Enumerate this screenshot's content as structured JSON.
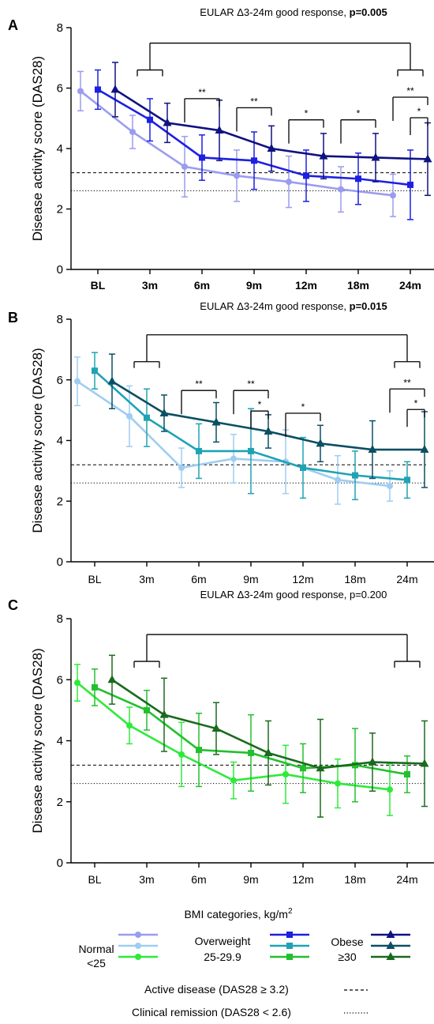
{
  "figure": {
    "x_axis_title": "BMI categories, kg/m",
    "x_axis_title_sup": "2",
    "legend": {
      "groups": [
        {
          "line1": "Normal",
          "line2": "<25",
          "series_colors": [
            "#9a9cf0",
            "#9ecdf2",
            "#2eea3a"
          ],
          "marker": "circle"
        },
        {
          "line1": "Overweight",
          "line2": "25-29.9",
          "series_colors": [
            "#1d20e0",
            "#1fa3b4",
            "#23c02d"
          ],
          "marker": "square"
        },
        {
          "line1": "Obese",
          "line2": "≥30",
          "series_colors": [
            "#0f1281",
            "#0b4f63",
            "#1a6a1e"
          ],
          "marker": "triangle"
        }
      ],
      "active_disease_label": "Active disease (DAS28 ≥ 3.2)",
      "remission_label": "Clinical remission (DAS28 < 2.6)"
    }
  },
  "chart_data": [
    {
      "type": "line",
      "panel": "A",
      "title_prefix": "EULAR Δ3-24m good response, ",
      "title_p": "p=0.005",
      "title_p_bold": true,
      "ylabel": "Disease activity score (DAS28)",
      "xlabel": "BMI categories, kg/m²",
      "categories": [
        "BL",
        "3m",
        "6m",
        "9m",
        "12m",
        "18m",
        "24m"
      ],
      "x_ticks_bold": true,
      "ylim": [
        0,
        8
      ],
      "yticks": [
        0,
        2,
        4,
        6,
        8
      ],
      "reference_lines": {
        "active_disease": 3.2,
        "clinical_remission": 2.6
      },
      "series": [
        {
          "group": "Normal",
          "color": "#9a9cf0",
          "marker": "circle",
          "values": [
            5.9,
            4.55,
            3.4,
            3.1,
            2.9,
            2.65,
            2.45
          ],
          "errors": [
            0.65,
            0.55,
            1.0,
            0.85,
            0.85,
            0.75,
            0.7
          ]
        },
        {
          "group": "Overweight",
          "color": "#1d20e0",
          "marker": "square",
          "values": [
            5.95,
            4.95,
            3.7,
            3.6,
            3.1,
            3.0,
            2.8
          ],
          "errors": [
            0.65,
            0.7,
            0.75,
            0.95,
            0.85,
            0.85,
            1.15
          ]
        },
        {
          "group": "Obese",
          "color": "#0f1281",
          "marker": "triangle",
          "values": [
            5.95,
            4.85,
            4.6,
            4.0,
            3.75,
            3.7,
            3.65
          ],
          "errors": [
            0.9,
            0.65,
            1.0,
            0.75,
            0.75,
            0.8,
            1.2
          ]
        }
      ],
      "significance": [
        {
          "from": 0,
          "to": 2,
          "levels": [
            6.6
          ],
          "stars": [
            ""
          ],
          "big": true
        },
        {
          "cat": 2,
          "pairs": [
            [
              "Normal",
              "Obese"
            ]
          ],
          "stars": [
            "**"
          ],
          "y": 5.65
        },
        {
          "cat": 3,
          "pairs": [
            [
              "Normal",
              "Obese"
            ]
          ],
          "stars": [
            "**"
          ],
          "y": 5.35
        },
        {
          "cat": 4,
          "pairs": [
            [
              "Normal",
              "Obese"
            ]
          ],
          "stars": [
            "*"
          ],
          "y": 4.95
        },
        {
          "cat": 5,
          "pairs": [
            [
              "Normal",
              "Obese"
            ]
          ],
          "stars": [
            "*"
          ],
          "y": 4.95
        },
        {
          "cat": 6,
          "pairs": [
            [
              "Normal",
              "Obese"
            ],
            [
              "Overweight",
              "Obese"
            ]
          ],
          "stars": [
            "**",
            "*"
          ],
          "y": 5.7
        }
      ]
    },
    {
      "type": "line",
      "panel": "B",
      "title_prefix": "EULAR Δ3-24m good response, ",
      "title_p": "p=0.015",
      "title_p_bold": true,
      "ylabel": "Disease activity score (DAS28)",
      "xlabel": "BMI categories, kg/m²",
      "categories": [
        "BL",
        "3m",
        "6m",
        "9m",
        "12m",
        "18m",
        "24m"
      ],
      "x_ticks_bold": false,
      "ylim": [
        0,
        8
      ],
      "yticks": [
        0,
        2,
        4,
        6,
        8
      ],
      "reference_lines": {
        "active_disease": 3.2,
        "clinical_remission": 2.6
      },
      "series": [
        {
          "group": "Normal",
          "color": "#9ecdf2",
          "marker": "circle",
          "values": [
            5.95,
            4.8,
            3.1,
            3.4,
            3.3,
            2.7,
            2.5
          ],
          "errors": [
            0.8,
            1.0,
            0.65,
            0.8,
            1.05,
            0.8,
            0.5
          ]
        },
        {
          "group": "Overweight",
          "color": "#1fa3b4",
          "marker": "square",
          "values": [
            6.3,
            4.75,
            3.65,
            3.65,
            3.1,
            2.85,
            2.7
          ],
          "errors": [
            0.6,
            0.95,
            0.9,
            1.4,
            1.0,
            0.8,
            0.6
          ]
        },
        {
          "group": "Obese",
          "color": "#0b4f63",
          "marker": "triangle",
          "values": [
            5.95,
            4.9,
            4.6,
            4.3,
            3.9,
            3.7,
            3.7
          ],
          "errors": [
            0.9,
            0.6,
            0.65,
            0.55,
            0.6,
            0.95,
            1.25
          ]
        }
      ],
      "significance": [
        {
          "from": 0,
          "to": 2,
          "levels": [
            6.6
          ],
          "stars": [
            ""
          ],
          "big": true
        },
        {
          "cat": 2,
          "pairs": [
            [
              "Normal",
              "Obese"
            ]
          ],
          "stars": [
            "**"
          ],
          "y": 5.65
        },
        {
          "cat": 3,
          "pairs": [
            [
              "Normal",
              "Obese"
            ],
            [
              "Overweight",
              "Obese"
            ]
          ],
          "stars": [
            "**",
            "*"
          ],
          "y": 5.65
        },
        {
          "cat": 4,
          "pairs": [
            [
              "Normal",
              "Obese"
            ]
          ],
          "stars": [
            "*"
          ],
          "y": 4.9
        },
        {
          "cat": 6,
          "pairs": [
            [
              "Normal",
              "Obese"
            ],
            [
              "Overweight",
              "Obese"
            ]
          ],
          "stars": [
            "**",
            "*"
          ],
          "y": 5.7
        }
      ]
    },
    {
      "type": "line",
      "panel": "C",
      "title_prefix": "EULAR Δ3-24m good response, ",
      "title_p": "p=0.200",
      "title_p_bold": false,
      "ylabel": "Disease activity score (DAS28)",
      "xlabel": "BMI categories, kg/m²",
      "categories": [
        "BL",
        "3m",
        "6m",
        "9m",
        "12m",
        "18m",
        "24m"
      ],
      "x_ticks_bold": false,
      "ylim": [
        0,
        8
      ],
      "yticks": [
        0,
        2,
        4,
        6,
        8
      ],
      "reference_lines": {
        "active_disease": 3.2,
        "clinical_remission": 2.6
      },
      "series": [
        {
          "group": "Normal",
          "color": "#2eea3a",
          "marker": "circle",
          "values": [
            5.9,
            4.5,
            3.55,
            2.7,
            2.9,
            2.6,
            2.4
          ],
          "errors": [
            0.6,
            0.6,
            1.05,
            0.6,
            0.95,
            0.8,
            0.85
          ]
        },
        {
          "group": "Overweight",
          "color": "#23c02d",
          "marker": "square",
          "values": [
            5.75,
            5.0,
            3.7,
            3.6,
            3.1,
            3.2,
            2.9
          ],
          "errors": [
            0.6,
            0.65,
            1.2,
            1.25,
            0.8,
            1.2,
            0.6
          ]
        },
        {
          "group": "Obese",
          "color": "#1a6a1e",
          "marker": "triangle",
          "values": [
            6.0,
            4.85,
            4.4,
            3.6,
            3.1,
            3.3,
            3.25
          ],
          "errors": [
            0.8,
            1.2,
            0.85,
            1.05,
            1.6,
            0.95,
            1.4
          ]
        }
      ],
      "significance": [
        {
          "from": 0,
          "to": 2,
          "levels": [
            6.6
          ],
          "stars": [
            ""
          ],
          "big": true
        }
      ]
    }
  ]
}
